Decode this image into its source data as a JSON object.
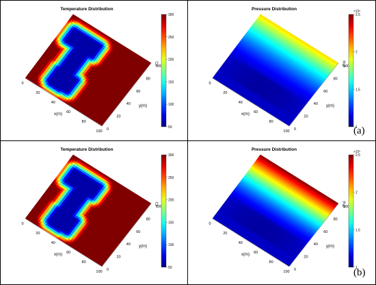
{
  "rows": [
    {
      "label": "(a)"
    },
    {
      "label": "(b)"
    }
  ],
  "chart_data": [
    {
      "type": "heatmap",
      "panel": "row-a-left",
      "title": "Temperature Distribution",
      "xlabel": "x(m)",
      "ylabel": "y(m)",
      "x_ticks": [
        "0",
        "20",
        "40",
        "60",
        "80",
        "100"
      ],
      "y_ticks": [
        "0",
        "20",
        "40",
        "60",
        "80",
        "100"
      ],
      "colorbar": {
        "label": "(C)",
        "ticks": [
          "50",
          "100",
          "150",
          "200",
          "250",
          "300"
        ],
        "range": [
          50,
          300
        ],
        "colormap": "jet",
        "exponent_label": ""
      },
      "field": {
        "background": 300,
        "low": 60,
        "shape": "T-shaped cold region",
        "corridors": [
          {
            "x1": 12,
            "y1": 68,
            "x2": 44,
            "y2": 84
          },
          {
            "x1": 26,
            "y1": 12,
            "x2": 38,
            "y2": 76
          },
          {
            "x1": 24,
            "y1": 14,
            "x2": 46,
            "y2": 32
          }
        ]
      }
    },
    {
      "type": "heatmap",
      "panel": "row-a-right",
      "title": "Pressure Distribution",
      "xlabel": "x(m)",
      "ylabel": "y(m)",
      "x_ticks": [
        "0",
        "20",
        "40",
        "60",
        "80",
        "100"
      ],
      "y_ticks": [
        "0",
        "20",
        "40",
        "60",
        "80",
        "100"
      ],
      "colorbar": {
        "label": "(Pa)",
        "ticks": [
          "1",
          "1.5",
          "2",
          "2.5"
        ],
        "range": [
          1,
          2.5
        ],
        "colormap": "jet",
        "exponent_label": "×10⁷"
      },
      "field": {
        "bottom_value": 1.1,
        "top_value": 2.0,
        "gradient": "increasing toward high y"
      }
    },
    {
      "type": "heatmap",
      "panel": "row-b-left",
      "title": "Temperature Distribution",
      "xlabel": "x(m)",
      "ylabel": "y(m)",
      "x_ticks": [
        "0",
        "20",
        "40",
        "60",
        "80",
        "100"
      ],
      "y_ticks": [
        "0",
        "20",
        "40",
        "60",
        "80",
        "100"
      ],
      "colorbar": {
        "label": "(C)",
        "ticks": [
          "50",
          "100",
          "150",
          "200",
          "250",
          "300"
        ],
        "range": [
          50,
          300
        ],
        "colormap": "jet",
        "exponent_label": ""
      },
      "field": {
        "background": 300,
        "low": 60,
        "shape": "T-shaped cold region",
        "corridors": [
          {
            "x1": 12,
            "y1": 68,
            "x2": 44,
            "y2": 84
          },
          {
            "x1": 26,
            "y1": 12,
            "x2": 38,
            "y2": 76
          },
          {
            "x1": 24,
            "y1": 14,
            "x2": 46,
            "y2": 32
          }
        ]
      }
    },
    {
      "type": "heatmap",
      "panel": "row-b-right",
      "title": "Pressure Distribution",
      "xlabel": "x(m)",
      "ylabel": "y(m)",
      "x_ticks": [
        "0",
        "20",
        "40",
        "60",
        "80",
        "100"
      ],
      "y_ticks": [
        "0",
        "20",
        "40",
        "60",
        "80",
        "100"
      ],
      "colorbar": {
        "label": "(Pa)",
        "ticks": [
          "1",
          "1.5",
          "2",
          "2.5"
        ],
        "range": [
          1,
          2.5
        ],
        "colormap": "jet",
        "exponent_label": "×10⁷"
      },
      "field": {
        "bottom_value": 1.1,
        "top_value": 2.5,
        "gradient": "increasing toward high y"
      }
    }
  ]
}
